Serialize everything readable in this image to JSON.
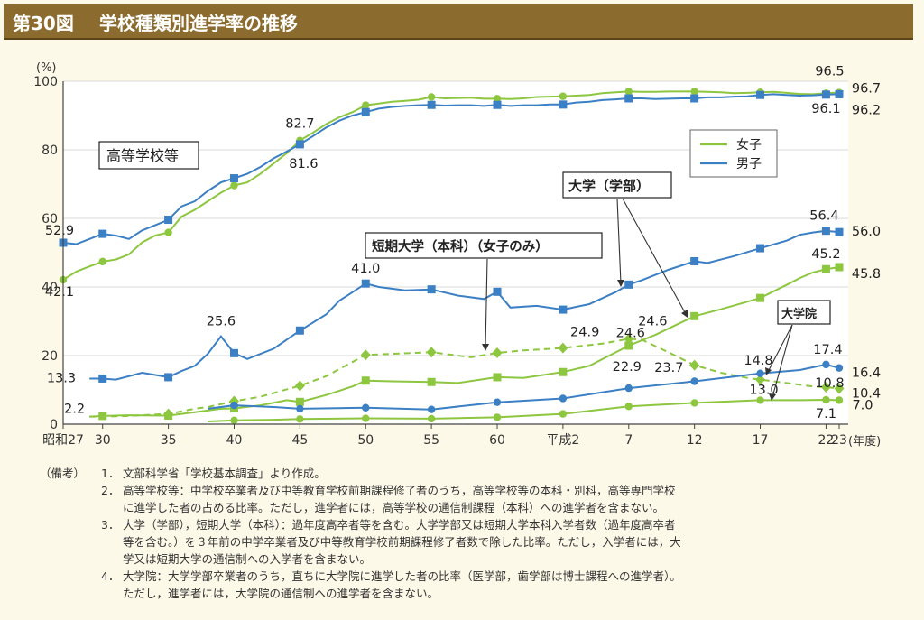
{
  "header": {
    "figure_no": "第30図",
    "title": "学校種類別進学率の推移"
  },
  "chart_data": {
    "type": "line",
    "ylabel": "(%)",
    "xlabel": "(年度)",
    "ylim": [
      0,
      100
    ],
    "yticks": [
      0,
      20,
      40,
      60,
      80,
      100
    ],
    "xlim": [
      1952,
      2011
    ],
    "xticks": [
      {
        "x": 1952,
        "label": "昭和27"
      },
      {
        "x": 1955,
        "label": "30"
      },
      {
        "x": 1960,
        "label": "35"
      },
      {
        "x": 1965,
        "label": "40"
      },
      {
        "x": 1970,
        "label": "45"
      },
      {
        "x": 1975,
        "label": "50"
      },
      {
        "x": 1980,
        "label": "55"
      },
      {
        "x": 1985,
        "label": "60"
      },
      {
        "x": 1990,
        "label": "平成2"
      },
      {
        "x": 1995,
        "label": "7"
      },
      {
        "x": 2000,
        "label": "12"
      },
      {
        "x": 2005,
        "label": "17"
      },
      {
        "x": 2010,
        "label": "22"
      },
      {
        "x": 2011,
        "label": "23"
      }
    ],
    "legend": {
      "placement": "top-right",
      "entries": [
        {
          "label": "女子",
          "color": "#8dc63f"
        },
        {
          "label": "男子",
          "color": "#3b7fc4"
        }
      ]
    },
    "series": [
      {
        "group": "高等学校等",
        "sex": "female",
        "color": "#8dc63f",
        "marker": "circle",
        "dash": false,
        "x": [
          1952,
          1953,
          1954,
          1955,
          1956,
          1957,
          1958,
          1959,
          1960,
          1961,
          1962,
          1963,
          1964,
          1965,
          1966,
          1967,
          1968,
          1969,
          1970,
          1971,
          1972,
          1973,
          1974,
          1975,
          1976,
          1977,
          1978,
          1979,
          1980,
          1981,
          1982,
          1983,
          1984,
          1985,
          1986,
          1987,
          1988,
          1989,
          1990,
          1991,
          1992,
          1993,
          1994,
          1995,
          1996,
          1997,
          1998,
          1999,
          2000,
          2001,
          2002,
          2003,
          2004,
          2005,
          2006,
          2007,
          2008,
          2009,
          2010,
          2011
        ],
        "y": [
          42.1,
          44.5,
          46.0,
          47.4,
          48.0,
          49.5,
          53.0,
          55.0,
          55.9,
          60.5,
          62.5,
          65.0,
          67.5,
          69.6,
          70.5,
          73.0,
          76.0,
          79.0,
          82.7,
          85.0,
          87.5,
          89.5,
          91.0,
          93.0,
          93.5,
          94.0,
          94.3,
          94.6,
          95.4,
          95.0,
          95.1,
          95.2,
          94.9,
          94.9,
          94.8,
          95.0,
          95.4,
          95.5,
          95.6,
          95.8,
          96.0,
          96.5,
          96.8,
          97.0,
          96.9,
          96.9,
          97.0,
          97.0,
          97.0,
          96.9,
          96.8,
          96.5,
          96.6,
          96.8,
          96.9,
          96.6,
          96.3,
          96.2,
          96.5,
          96.7
        ],
        "markers_x": [
          1952,
          1955,
          1960,
          1965,
          1970,
          1975,
          1980,
          1985,
          1990,
          1995,
          2000,
          2005,
          2010,
          2011
        ]
      },
      {
        "group": "高等学校等",
        "sex": "male",
        "color": "#3b7fc4",
        "marker": "square",
        "dash": false,
        "x": [
          1952,
          1953,
          1954,
          1955,
          1956,
          1957,
          1958,
          1959,
          1960,
          1961,
          1962,
          1963,
          1964,
          1965,
          1966,
          1967,
          1968,
          1969,
          1970,
          1971,
          1972,
          1973,
          1974,
          1975,
          1976,
          1977,
          1978,
          1979,
          1980,
          1981,
          1982,
          1983,
          1984,
          1985,
          1986,
          1987,
          1988,
          1989,
          1990,
          1991,
          1992,
          1993,
          1994,
          1995,
          1996,
          1997,
          1998,
          1999,
          2000,
          2001,
          2002,
          2003,
          2004,
          2005,
          2006,
          2007,
          2008,
          2009,
          2010,
          2011
        ],
        "y": [
          52.9,
          52.5,
          54.0,
          55.5,
          55.0,
          54.0,
          56.5,
          58.0,
          59.6,
          63.5,
          65.0,
          68.0,
          70.5,
          71.7,
          73.0,
          75.0,
          77.5,
          79.5,
          81.6,
          84.0,
          86.5,
          88.5,
          90.0,
          91.0,
          92.0,
          92.5,
          92.8,
          93.0,
          93.1,
          92.9,
          93.0,
          93.0,
          92.8,
          93.1,
          92.8,
          93.0,
          93.0,
          93.2,
          93.2,
          93.8,
          94.0,
          94.5,
          94.7,
          95.0,
          95.0,
          94.8,
          94.9,
          95.0,
          95.0,
          95.3,
          95.3,
          95.5,
          95.6,
          96.0,
          96.2,
          96.0,
          95.8,
          95.9,
          96.1,
          96.2
        ],
        "markers_x": [
          1952,
          1955,
          1960,
          1965,
          1970,
          1975,
          1980,
          1985,
          1990,
          1995,
          2000,
          2005,
          2010,
          2011
        ]
      },
      {
        "group": "大学（学部）",
        "sex": "female",
        "color": "#8dc63f",
        "marker": "square",
        "dash": false,
        "x": [
          1954,
          1955,
          1957,
          1960,
          1962,
          1964,
          1965,
          1967,
          1969,
          1970,
          1972,
          1974,
          1975,
          1977,
          1980,
          1982,
          1985,
          1987,
          1990,
          1992,
          1995,
          1997,
          2000,
          2002,
          2005,
          2007,
          2008,
          2009,
          2010,
          2011
        ],
        "y": [
          2.2,
          2.4,
          2.6,
          2.5,
          3.5,
          4.5,
          4.6,
          5.5,
          7.0,
          6.5,
          8.5,
          11.0,
          12.7,
          12.5,
          12.3,
          12.0,
          13.7,
          13.5,
          15.2,
          17.0,
          22.9,
          26.0,
          31.5,
          33.5,
          36.8,
          40.6,
          42.6,
          44.2,
          45.2,
          45.8
        ],
        "markers_x": [
          1955,
          1960,
          1965,
          1970,
          1975,
          1980,
          1985,
          1990,
          1995,
          2000,
          2005,
          2010,
          2011
        ]
      },
      {
        "group": "大学（学部）",
        "sex": "male",
        "color": "#3b7fc4",
        "marker": "square",
        "dash": false,
        "x": [
          1954,
          1955,
          1956,
          1958,
          1960,
          1961,
          1962,
          1963,
          1964,
          1965,
          1966,
          1968,
          1970,
          1972,
          1973,
          1975,
          1976,
          1978,
          1980,
          1982,
          1984,
          1985,
          1986,
          1988,
          1990,
          1992,
          1994,
          1995,
          1996,
          1998,
          2000,
          2001,
          2003,
          2005,
          2007,
          2008,
          2009,
          2010,
          2011
        ],
        "y": [
          13.3,
          13.3,
          13.0,
          15.0,
          13.7,
          15.5,
          17.0,
          20.5,
          25.6,
          20.7,
          19.0,
          22.0,
          27.3,
          32.0,
          36.0,
          41.0,
          40.0,
          39.0,
          39.3,
          37.5,
          36.5,
          38.6,
          34.0,
          34.5,
          33.4,
          35.0,
          38.5,
          40.7,
          42.0,
          45.0,
          47.5,
          47.0,
          49.0,
          51.3,
          53.5,
          55.2,
          55.9,
          56.4,
          56.0
        ],
        "markers_x": [
          1955,
          1960,
          1965,
          1970,
          1975,
          1980,
          1985,
          1990,
          1995,
          2000,
          2005,
          2010,
          2011
        ]
      },
      {
        "group": "短期大学（本科）（女子のみ）",
        "sex": "female",
        "color": "#8dc63f",
        "marker": "diamond",
        "dash": true,
        "x": [
          1954,
          1955,
          1957,
          1960,
          1962,
          1963,
          1965,
          1967,
          1970,
          1972,
          1975,
          1977,
          1980,
          1983,
          1985,
          1987,
          1990,
          1993,
          1995,
          1996,
          1998,
          2000,
          2002,
          2004,
          2005,
          2007,
          2008,
          2009,
          2010,
          2011
        ],
        "y": [
          2.2,
          2.2,
          2.4,
          3.0,
          4.5,
          5.0,
          6.7,
          8.0,
          11.2,
          14.0,
          20.2,
          20.5,
          21.0,
          19.5,
          20.8,
          21.5,
          22.2,
          23.5,
          24.9,
          24.6,
          21.0,
          17.2,
          15.0,
          13.5,
          13.0,
          12.0,
          11.5,
          11.0,
          10.8,
          10.4
        ],
        "markers_x": [
          1960,
          1965,
          1970,
          1975,
          1980,
          1985,
          1990,
          1995,
          2000,
          2005,
          2010,
          2011
        ]
      },
      {
        "group": "大学院",
        "sex": "female",
        "color": "#8dc63f",
        "marker": "circle",
        "dash": false,
        "x": [
          1963,
          1965,
          1968,
          1970,
          1975,
          1980,
          1985,
          1990,
          1995,
          2000,
          2005,
          2008,
          2010,
          2011
        ],
        "y": [
          0.8,
          1.1,
          1.3,
          1.5,
          1.7,
          1.6,
          2.0,
          3.0,
          5.2,
          6.2,
          7.0,
          7.0,
          7.1,
          7.0
        ],
        "markers_x": [
          1965,
          1970,
          1975,
          1980,
          1985,
          1990,
          1995,
          2000,
          2005,
          2010,
          2011
        ]
      },
      {
        "group": "大学院",
        "sex": "male",
        "color": "#3b7fc4",
        "marker": "circle",
        "dash": false,
        "x": [
          1963,
          1965,
          1968,
          1970,
          1975,
          1980,
          1985,
          1990,
          1995,
          2000,
          2005,
          2008,
          2010,
          2011
        ],
        "y": [
          4.5,
          5.5,
          5.0,
          4.5,
          4.8,
          4.3,
          6.4,
          7.5,
          10.5,
          12.5,
          14.8,
          15.8,
          17.4,
          16.4
        ],
        "markers_x": [
          1965,
          1970,
          1975,
          1980,
          1985,
          1990,
          1995,
          2000,
          2005,
          2010,
          2011
        ]
      }
    ],
    "group_labels": [
      {
        "text": "高等学校等",
        "boxed": true
      },
      {
        "text": "大学（学部）",
        "boxed": true
      },
      {
        "text": "短期大学（本科）（女子のみ）",
        "boxed": true
      },
      {
        "text": "大学院",
        "boxed": true
      }
    ],
    "data_labels": [
      {
        "text": "52.9",
        "x": 1952,
        "y": 52.9,
        "dx": -4,
        "dy": -9
      },
      {
        "text": "42.1",
        "x": 1952,
        "y": 42.1,
        "dx": -4,
        "dy": 18
      },
      {
        "text": "82.7",
        "x": 1970,
        "y": 82.7,
        "dx": 0,
        "dy": -14
      },
      {
        "text": "81.6",
        "x": 1970,
        "y": 81.6,
        "dx": 4,
        "dy": 26
      },
      {
        "text": "96.5",
        "x": 2010,
        "y": 96.5,
        "dx": 4,
        "dy": -20
      },
      {
        "text": "96.1",
        "x": 2010,
        "y": 96.1,
        "dx": 0,
        "dy": 20
      },
      {
        "text": "96.7",
        "x": 2011,
        "y": 96.7,
        "dx": 30,
        "dy": 0
      },
      {
        "text": "96.2",
        "x": 2011,
        "y": 96.2,
        "dx": 30,
        "dy": 22
      },
      {
        "text": "56.4",
        "x": 2010,
        "y": 56.4,
        "dx": -2,
        "dy": -12
      },
      {
        "text": "56.0",
        "x": 2011,
        "y": 56.0,
        "dx": 30,
        "dy": 4
      },
      {
        "text": "45.2",
        "x": 2010,
        "y": 45.2,
        "dx": 0,
        "dy": -12
      },
      {
        "text": "45.8",
        "x": 2011,
        "y": 45.8,
        "dx": 30,
        "dy": 12
      },
      {
        "text": "41.0",
        "x": 1975,
        "y": 41.0,
        "dx": 0,
        "dy": -12
      },
      {
        "text": "25.6",
        "x": 1964,
        "y": 25.6,
        "dx": 0,
        "dy": -12
      },
      {
        "text": "13.3",
        "x": 1952,
        "y": 13.3,
        "dx": -2,
        "dy": 4
      },
      {
        "text": "2.2",
        "x": 1953,
        "y": 2.2,
        "dx": -2,
        "dy": -4
      },
      {
        "text": "24.6",
        "x": 1996,
        "y": 24.6,
        "dx": 12,
        "dy": -16
      },
      {
        "text": "24.9",
        "x": 1994,
        "y": 24.9,
        "dx": -34,
        "dy": -3
      },
      {
        "text": "24.6",
        "x": 1995,
        "y": 24.6,
        "dx": 2,
        "dy": -3
      },
      {
        "text": "22.9",
        "x": 1995,
        "y": 22.9,
        "dx": -2,
        "dy": 28
      },
      {
        "text": "23.7",
        "x": 1996,
        "y": 23.7,
        "dx": 30,
        "dy": 32
      },
      {
        "text": "14.8",
        "x": 2005,
        "y": 14.8,
        "dx": -2,
        "dy": -10
      },
      {
        "text": "13.0",
        "x": 2005,
        "y": 13.0,
        "dx": 4,
        "dy": 16
      },
      {
        "text": "17.4",
        "x": 2010,
        "y": 17.4,
        "dx": 2,
        "dy": -12
      },
      {
        "text": "10.8",
        "x": 2010,
        "y": 10.8,
        "dx": 4,
        "dy": 0
      },
      {
        "text": "7.1",
        "x": 2010,
        "y": 7.1,
        "dx": 0,
        "dy": 20
      },
      {
        "text": "16.4",
        "x": 2011,
        "y": 16.4,
        "dx": 30,
        "dy": 10
      },
      {
        "text": "10.4",
        "x": 2011,
        "y": 10.4,
        "dx": 30,
        "dy": 10
      },
      {
        "text": "7.0",
        "x": 2011,
        "y": 7.0,
        "dx": 26,
        "dy": 10
      }
    ]
  },
  "notes": {
    "label": "（備考）",
    "items": [
      {
        "num": "1．",
        "lines": [
          "文部科学省「学校基本調査」より作成。"
        ]
      },
      {
        "num": "2．",
        "lines": [
          "高等学校等：中学校卒業者及び中等教育学校前期課程修了者のうち，高等学校等の本科・別科，高等専門学校",
          "に進学した者の占める比率。ただし，進学者には，高等学校の通信制課程（本科）への進学者を含まない。"
        ]
      },
      {
        "num": "3．",
        "lines": [
          "大学（学部），短期大学（本科）：過年度高卒者等を含む。大学学部又は短期大学本科入学者数（過年度高卒者",
          "等を含む。）を３年前の中学卒業者及び中等教育学校前期課程修了者数で除した比率。ただし，入学者には，大",
          "学又は短期大学の通信制への入学者を含まない。"
        ]
      },
      {
        "num": "4．",
        "lines": [
          "大学院：大学学部卒業者のうち，直ちに大学院に進学した者の比率（医学部，歯学部は博士課程への進学者）。",
          "ただし，進学者には，大学院の通信制への進学者を含まない。"
        ]
      }
    ]
  }
}
